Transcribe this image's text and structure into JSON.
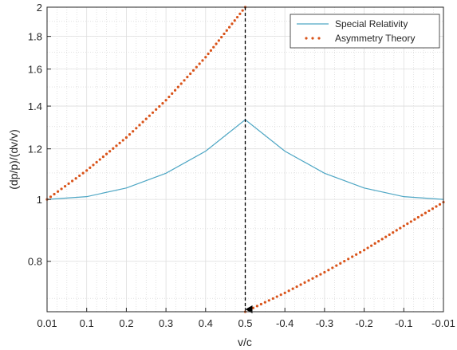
{
  "chart_data": {
    "type": "line",
    "xlabel": "v/c",
    "ylabel": "(dp/p)/(dv/v)",
    "x_tick_labels": [
      "0.01",
      "0.1",
      "0.2",
      "0.3",
      "0.4",
      "0.5",
      "-0.4",
      "-0.3",
      "-0.2",
      "-0.1",
      "-0.01"
    ],
    "y_tick_labels": [
      "0.8",
      "1",
      "1.2",
      "1.4",
      "1.6",
      "1.8",
      "2"
    ],
    "y_ticks": [
      0.8,
      1,
      1.2,
      1.4,
      1.6,
      1.8,
      2
    ],
    "ylim": [
      0.667,
      2
    ],
    "y_scale": "log",
    "grid": true,
    "legend_position": "top-right",
    "series": [
      {
        "name": "Special Relativity",
        "style": "solid",
        "color": "#4DA6C4",
        "points": [
          {
            "x": "0.01",
            "y": 1.0
          },
          {
            "x": "0.1",
            "y": 1.01
          },
          {
            "x": "0.2",
            "y": 1.042
          },
          {
            "x": "0.3",
            "y": 1.099
          },
          {
            "x": "0.4",
            "y": 1.19
          },
          {
            "x": "0.5",
            "y": 1.333
          },
          {
            "x": "-0.4",
            "y": 1.19
          },
          {
            "x": "-0.3",
            "y": 1.099
          },
          {
            "x": "-0.2",
            "y": 1.042
          },
          {
            "x": "-0.1",
            "y": 1.01
          },
          {
            "x": "-0.01",
            "y": 1.0
          }
        ]
      },
      {
        "name": "Asymmetry Theory",
        "style": "dotted",
        "color": "#D95319",
        "points": [
          {
            "x": "0.01",
            "y": 1.0
          },
          {
            "x": "0.1",
            "y": 1.11
          },
          {
            "x": "0.2",
            "y": 1.25
          },
          {
            "x": "0.3",
            "y": 1.43
          },
          {
            "x": "0.4",
            "y": 1.67
          },
          {
            "x": "0.5",
            "y": 2.0
          }
        ]
      },
      {
        "name": "Asymmetry Theory",
        "style": "dotted",
        "color": "#D95319",
        "points": [
          {
            "x": "0.5",
            "y": 0.667
          },
          {
            "x": "-0.4",
            "y": 0.714
          },
          {
            "x": "-0.3",
            "y": 0.769
          },
          {
            "x": "-0.2",
            "y": 0.833
          },
          {
            "x": "-0.1",
            "y": 0.909
          },
          {
            "x": "-0.01",
            "y": 0.99
          }
        ]
      }
    ],
    "annotations": [
      {
        "type": "dashed-arrow-down",
        "x": "0.5",
        "color": "#000000"
      }
    ]
  }
}
